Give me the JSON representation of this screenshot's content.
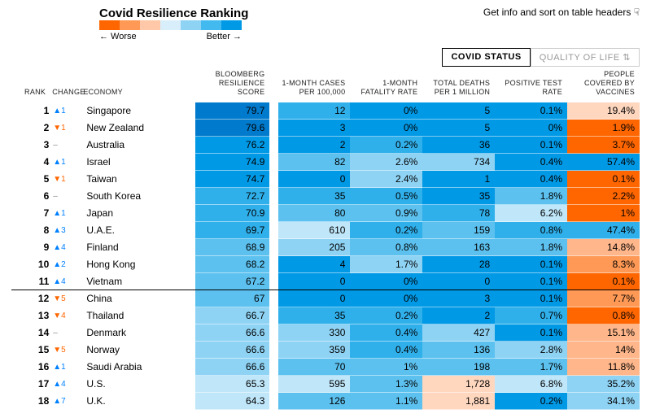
{
  "title": "Covid Resilience Ranking",
  "hint": "Get info and sort on table headers",
  "legend": {
    "worse": "← Worse",
    "better": "Better →",
    "colors": [
      "#ff6600",
      "#ff9955",
      "#ffc8a8",
      "#d9eefb",
      "#8fd3f4",
      "#42baf0",
      "#0099e6"
    ]
  },
  "tabs": {
    "active": "COVID STATUS",
    "inactive": "QUALITY OF LIFE"
  },
  "headers": {
    "rank": "RANK",
    "change": "CHANGE",
    "economy": "ECONOMY",
    "score": "BLOOMBERG RESILIENCE SCORE",
    "cases": "1-MONTH CASES PER 100,000",
    "fatality": "1-MONTH FATALITY RATE",
    "deaths": "TOTAL DEATHS PER 1 MILLION",
    "positive": "POSITIVE TEST RATE",
    "vaccines": "PEOPLE COVERED BY VACCINES"
  },
  "palette": {
    "score": [
      "#e6f4fc",
      "#bfe6f9",
      "#8fd3f4",
      "#5cc1ef",
      "#30b0eb",
      "#0099e6",
      "#007acc"
    ],
    "heat": [
      "#0099e6",
      "#30b0eb",
      "#5cc1ef",
      "#8fd3f4",
      "#bfe6f9",
      "#ffd7bf",
      "#ffb68a",
      "#ff9955",
      "#ff6600"
    ]
  },
  "rows": [
    {
      "rank": 1,
      "dir": "up",
      "chg": "1",
      "economy": "Singapore",
      "score": "79.7",
      "cases": "12",
      "fatality": "0%",
      "deaths": "5",
      "positive": "0.1%",
      "vaccines": "19.4%",
      "c": {
        "score": 6,
        "cases": 1,
        "fatality": 0,
        "deaths": 0,
        "positive": 0,
        "vaccines_h": 5
      }
    },
    {
      "rank": 2,
      "dir": "down",
      "chg": "1",
      "economy": "New Zealand",
      "score": "79.6",
      "cases": "3",
      "fatality": "0%",
      "deaths": "5",
      "positive": "0%",
      "vaccines": "1.9%",
      "c": {
        "score": 6,
        "cases": 0,
        "fatality": 0,
        "deaths": 0,
        "positive": 0,
        "vaccines_h": 8
      }
    },
    {
      "rank": 3,
      "dir": "neutral",
      "chg": "–",
      "economy": "Australia",
      "score": "76.2",
      "cases": "2",
      "fatality": "0.2%",
      "deaths": "36",
      "positive": "0.1%",
      "vaccines": "3.7%",
      "c": {
        "score": 5,
        "cases": 0,
        "fatality": 1,
        "deaths": 0,
        "positive": 0,
        "vaccines_h": 8
      }
    },
    {
      "rank": 4,
      "dir": "up",
      "chg": "1",
      "economy": "Israel",
      "score": "74.9",
      "cases": "82",
      "fatality": "2.6%",
      "deaths": "734",
      "positive": "0.4%",
      "vaccines": "57.4%",
      "c": {
        "score": 5,
        "cases": 2,
        "fatality": 3,
        "deaths": 3,
        "positive": 0,
        "vaccines_h": 0
      }
    },
    {
      "rank": 5,
      "dir": "down",
      "chg": "1",
      "economy": "Taiwan",
      "score": "74.7",
      "cases": "0",
      "fatality": "2.4%",
      "deaths": "1",
      "positive": "0.4%",
      "vaccines": "0.1%",
      "c": {
        "score": 5,
        "cases": 0,
        "fatality": 3,
        "deaths": 0,
        "positive": 0,
        "vaccines_h": 8
      }
    },
    {
      "rank": 6,
      "dir": "neutral",
      "chg": "–",
      "economy": "South Korea",
      "score": "72.7",
      "cases": "35",
      "fatality": "0.5%",
      "deaths": "35",
      "positive": "1.8%",
      "vaccines": "2.2%",
      "c": {
        "score": 4,
        "cases": 1,
        "fatality": 1,
        "deaths": 0,
        "positive": 2,
        "vaccines_h": 8
      }
    },
    {
      "rank": 7,
      "dir": "up",
      "chg": "1",
      "economy": "Japan",
      "score": "70.9",
      "cases": "80",
      "fatality": "0.9%",
      "deaths": "78",
      "positive": "6.2%",
      "vaccines": "1%",
      "c": {
        "score": 4,
        "cases": 2,
        "fatality": 2,
        "deaths": 1,
        "positive": 4,
        "vaccines_h": 8
      }
    },
    {
      "rank": 8,
      "dir": "up",
      "chg": "3",
      "economy": "U.A.E.",
      "score": "69.7",
      "cases": "610",
      "fatality": "0.2%",
      "deaths": "159",
      "positive": "0.8%",
      "vaccines": "47.4%",
      "c": {
        "score": 4,
        "cases": 4,
        "fatality": 1,
        "deaths": 2,
        "positive": 1,
        "vaccines_h": 1
      }
    },
    {
      "rank": 9,
      "dir": "up",
      "chg": "4",
      "economy": "Finland",
      "score": "68.9",
      "cases": "205",
      "fatality": "0.8%",
      "deaths": "163",
      "positive": "1.8%",
      "vaccines": "14.8%",
      "c": {
        "score": 3,
        "cases": 3,
        "fatality": 2,
        "deaths": 2,
        "positive": 2,
        "vaccines_h": 6
      }
    },
    {
      "rank": 10,
      "dir": "up",
      "chg": "2",
      "economy": "Hong Kong",
      "score": "68.2",
      "cases": "4",
      "fatality": "1.7%",
      "deaths": "28",
      "positive": "0.1%",
      "vaccines": "8.3%",
      "c": {
        "score": 3,
        "cases": 0,
        "fatality": 3,
        "deaths": 0,
        "positive": 0,
        "vaccines_h": 7
      }
    },
    {
      "rank": 11,
      "dir": "up",
      "chg": "4",
      "economy": "Vietnam",
      "score": "67.2",
      "cases": "0",
      "fatality": "0%",
      "deaths": "0",
      "positive": "0.1%",
      "vaccines": "0.1%",
      "c": {
        "score": 3,
        "cases": 0,
        "fatality": 0,
        "deaths": 0,
        "positive": 0,
        "vaccines_h": 8
      },
      "divider": true
    },
    {
      "rank": 12,
      "dir": "down",
      "chg": "5",
      "economy": "China",
      "score": "67",
      "cases": "0",
      "fatality": "0%",
      "deaths": "3",
      "positive": "0.1%",
      "vaccines": "7.7%",
      "c": {
        "score": 3,
        "cases": 0,
        "fatality": 0,
        "deaths": 0,
        "positive": 0,
        "vaccines_h": 7
      }
    },
    {
      "rank": 13,
      "dir": "down",
      "chg": "4",
      "economy": "Thailand",
      "score": "66.7",
      "cases": "35",
      "fatality": "0.2%",
      "deaths": "2",
      "positive": "0.7%",
      "vaccines": "0.8%",
      "c": {
        "score": 2,
        "cases": 1,
        "fatality": 1,
        "deaths": 0,
        "positive": 1,
        "vaccines_h": 8
      }
    },
    {
      "rank": 14,
      "dir": "neutral",
      "chg": "–",
      "economy": "Denmark",
      "score": "66.6",
      "cases": "330",
      "fatality": "0.4%",
      "deaths": "427",
      "positive": "0.1%",
      "vaccines": "15.1%",
      "c": {
        "score": 2,
        "cases": 3,
        "fatality": 1,
        "deaths": 3,
        "positive": 0,
        "vaccines_h": 6
      }
    },
    {
      "rank": 15,
      "dir": "down",
      "chg": "5",
      "economy": "Norway",
      "score": "66.6",
      "cases": "359",
      "fatality": "0.4%",
      "deaths": "136",
      "positive": "2.8%",
      "vaccines": "14%",
      "c": {
        "score": 2,
        "cases": 3,
        "fatality": 1,
        "deaths": 2,
        "positive": 3,
        "vaccines_h": 6
      }
    },
    {
      "rank": 16,
      "dir": "up",
      "chg": "1",
      "economy": "Saudi Arabia",
      "score": "66.6",
      "cases": "70",
      "fatality": "1%",
      "deaths": "198",
      "positive": "1.7%",
      "vaccines": "11.8%",
      "c": {
        "score": 2,
        "cases": 2,
        "fatality": 2,
        "deaths": 2,
        "positive": 2,
        "vaccines_h": 6
      }
    },
    {
      "rank": 17,
      "dir": "up",
      "chg": "4",
      "economy": "U.S.",
      "score": "65.3",
      "cases": "595",
      "fatality": "1.3%",
      "deaths": "1,728",
      "positive": "6.8%",
      "vaccines": "35.2%",
      "c": {
        "score": 1,
        "cases": 4,
        "fatality": 2,
        "deaths": 5,
        "positive": 4,
        "vaccines_h": 3
      }
    },
    {
      "rank": 18,
      "dir": "up",
      "chg": "7",
      "economy": "U.K.",
      "score": "64.3",
      "cases": "126",
      "fatality": "1.1%",
      "deaths": "1,881",
      "positive": "0.2%",
      "vaccines": "34.1%",
      "c": {
        "score": 1,
        "cases": 2,
        "fatality": 2,
        "deaths": 5,
        "positive": 0,
        "vaccines_h": 3
      }
    }
  ]
}
